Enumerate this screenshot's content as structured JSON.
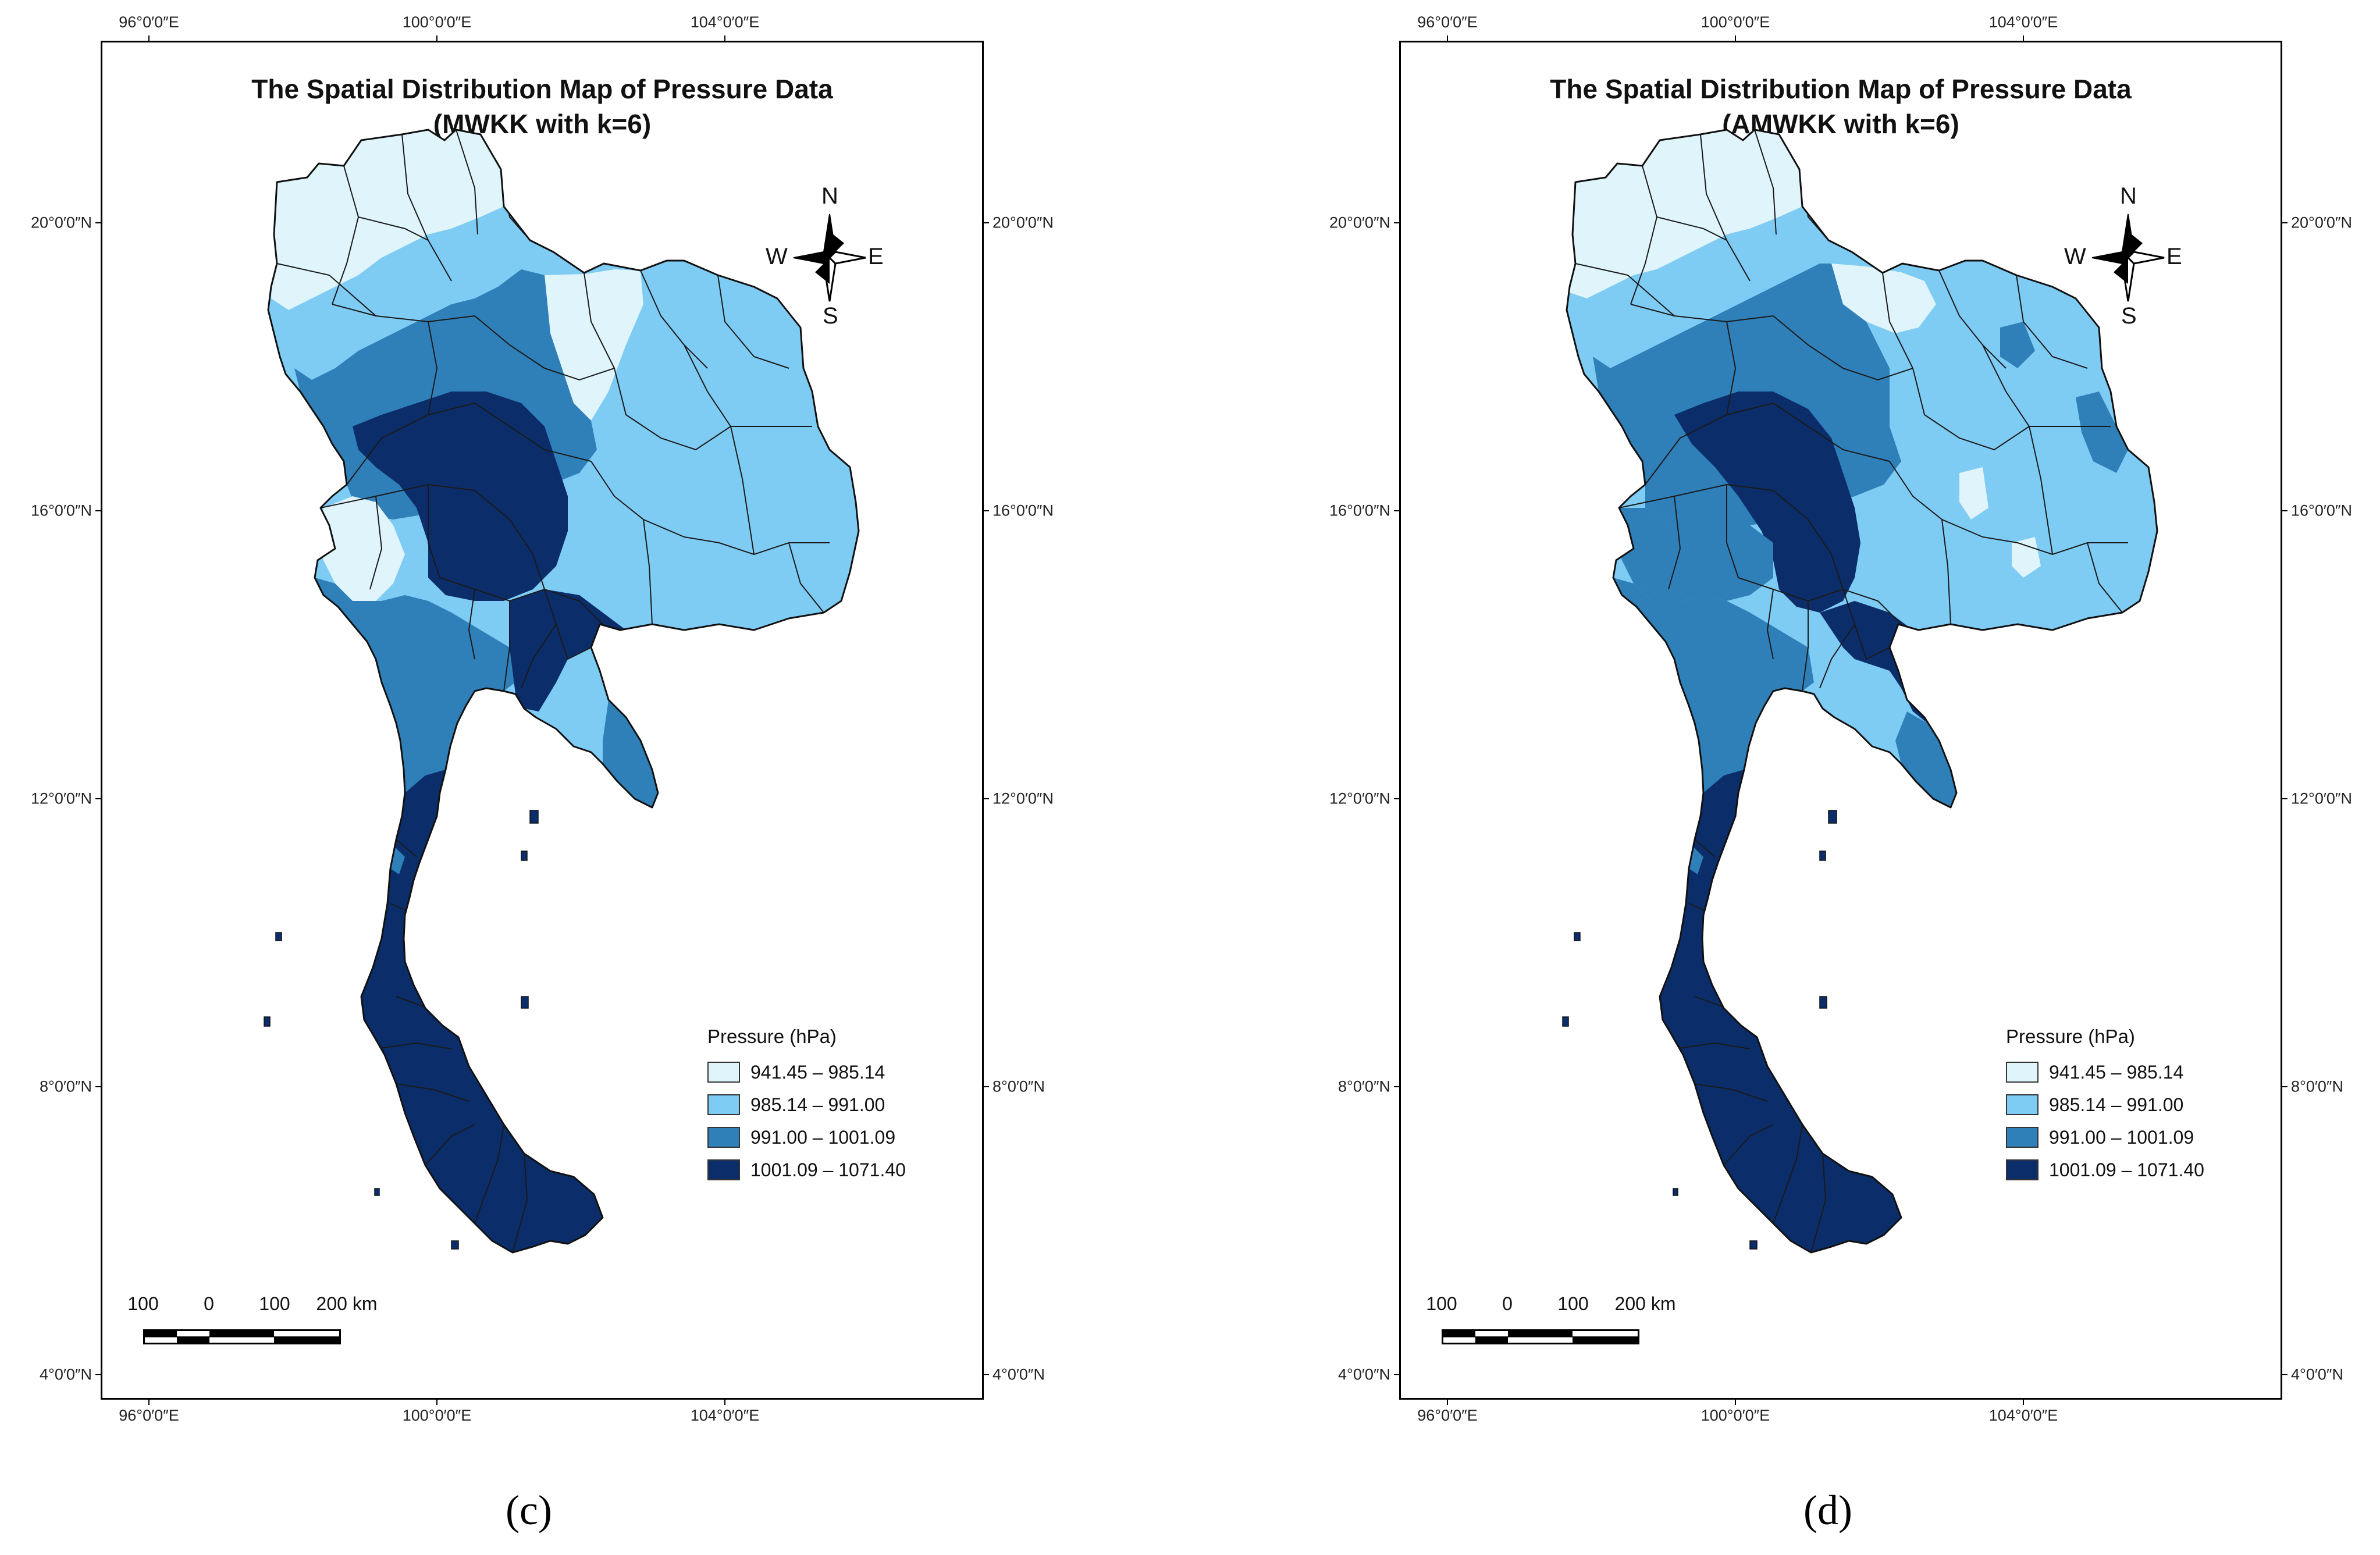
{
  "panels": [
    {
      "id": "c",
      "title_line1": "The Spatial Distribution Map of Pressure Data",
      "title_line2": "(MWKK with k=6)",
      "caption": "(c)",
      "variant": "mwkk"
    },
    {
      "id": "d",
      "title_line1": "The Spatial Distribution Map of Pressure Data",
      "title_line2": "(AMWKK with k=6)",
      "caption": "(d)",
      "variant": "amwkk"
    }
  ],
  "axes": {
    "top_ticks": [
      "96°0′0″E",
      "100°0′0″E",
      "104°0′0″E"
    ],
    "bottom_ticks": [
      "96°0′0″E",
      "100°0′0″E",
      "104°0′0″E"
    ],
    "left_ticks": [
      "20°0′0″N",
      "16°0′0″N",
      "12°0′0″N",
      "8°0′0″N",
      "4°0′0″N"
    ],
    "right_ticks": [
      "20°0′0″N",
      "16°0′0″N",
      "12°0′0″N",
      "8°0′0″N",
      "4°0′0″N"
    ]
  },
  "compass": {
    "north": "N",
    "south": "S",
    "east": "E",
    "west": "W"
  },
  "legend": {
    "title": "Pressure (hPa)",
    "classes": [
      {
        "label": "941.45 – 985.14",
        "color": "#dff4fb"
      },
      {
        "label": "985.14 – 991.00",
        "color": "#7ecbf4"
      },
      {
        "label": "991.00 – 1001.09",
        "color": "#2f7fb8"
      },
      {
        "label": "1001.09 – 1071.40",
        "color": "#0b2e6b"
      }
    ]
  },
  "scale_bar": {
    "labels": [
      "100",
      "0",
      "100",
      "200 km"
    ]
  }
}
